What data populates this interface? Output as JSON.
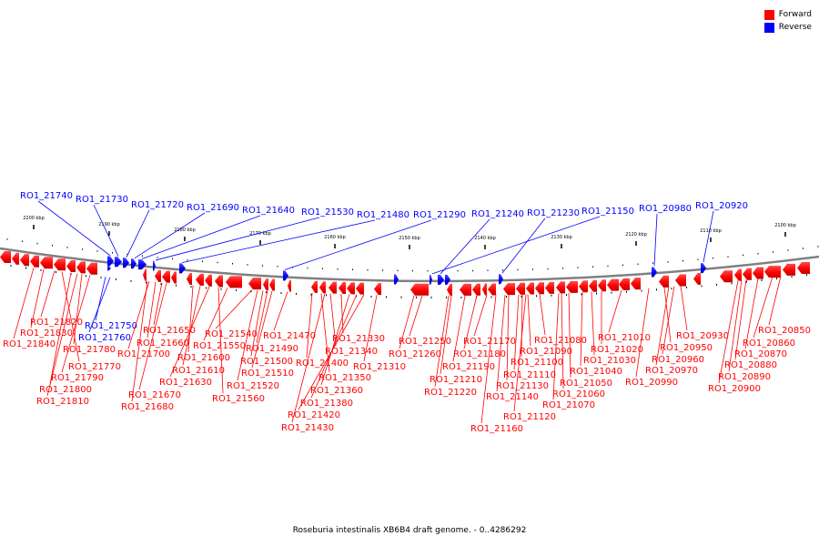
{
  "caption": "Roseburia intestinalis XB6B4 draft genome. - 0..4286292",
  "legend": [
    {
      "label": "Forward",
      "color": "#ff0000"
    },
    {
      "label": "Reverse",
      "color": "#0000ff"
    }
  ],
  "colors": {
    "forward": "#ff0000",
    "reverse": "#0000ff",
    "backbone": "#808080"
  },
  "scale_labels": [
    "2200 kbp",
    "2190 kbp",
    "2180 kbp",
    "2170 kbp",
    "2160 kbp",
    "2150 kbp",
    "2140 kbp",
    "2130 kbp",
    "2120 kbp",
    "2110 kbp",
    "2100 kbp"
  ],
  "reverse_labels": [
    "RO1_21740",
    "RO1_21730",
    "RO1_21720",
    "RO1_21690",
    "RO1_21640",
    "RO1_21530",
    "RO1_21480",
    "RO1_21290",
    "RO1_21240",
    "RO1_21230",
    "RO1_21150",
    "RO1_20980",
    "RO1_20920",
    "RO1_21750",
    "RO1_21760"
  ],
  "forward_labels": [
    "RO1_21820",
    "RO1_21830",
    "RO1_21840",
    "RO1_21780",
    "RO1_21770",
    "RO1_21790",
    "RO1_21800",
    "RO1_21810",
    "RO1_21650",
    "RO1_21660",
    "RO1_21700",
    "RO1_21600",
    "RO1_21610",
    "RO1_21630",
    "RO1_21670",
    "RO1_21680",
    "RO1_21540",
    "RO1_21550",
    "RO1_21560",
    "RO1_21470",
    "RO1_21490",
    "RO1_21500",
    "RO1_21510",
    "RO1_21520",
    "RO1_21330",
    "RO1_21340",
    "RO1_21400",
    "RO1_21350",
    "RO1_21360",
    "RO1_21380",
    "RO1_21420",
    "RO1_21430",
    "RO1_21310",
    "RO1_21250",
    "RO1_21260",
    "RO1_21170",
    "RO1_21180",
    "RO1_21190",
    "RO1_21210",
    "RO1_21220",
    "RO1_21080",
    "RO1_21090",
    "RO1_21100",
    "RO1_21110",
    "RO1_21130",
    "RO1_21140",
    "RO1_21120",
    "RO1_21160",
    "RO1_21010",
    "RO1_21020",
    "RO1_21030",
    "RO1_21040",
    "RO1_21050",
    "RO1_21060",
    "RO1_21070",
    "RO1_20930",
    "RO1_20950",
    "RO1_20960",
    "RO1_20970",
    "RO1_20990",
    "RO1_20850",
    "RO1_20860",
    "RO1_20870",
    "RO1_20880",
    "RO1_20890",
    "RO1_20900"
  ]
}
